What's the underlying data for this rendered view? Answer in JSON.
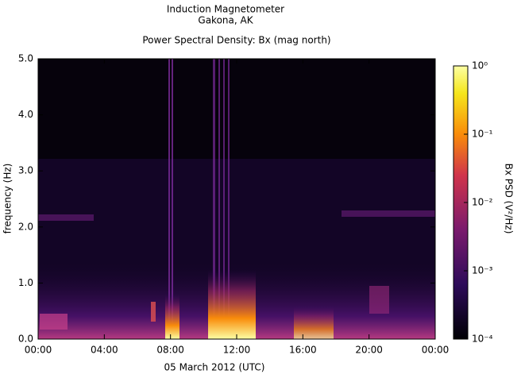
{
  "chart_data": {
    "type": "spectrogram",
    "title": "Induction Magnetometer",
    "subtitle": "Gakona, AK",
    "plot_title": "Power Spectral Density: Bx (mag north)",
    "x_label": "05 March 2012 (UTC)",
    "y_label": "frequency (Hz)",
    "xlim": [
      0,
      24
    ],
    "xticks": [
      {
        "value": 0,
        "label": "00:00"
      },
      {
        "value": 4,
        "label": "04:00"
      },
      {
        "value": 8,
        "label": "08:00"
      },
      {
        "value": 12,
        "label": "12:00"
      },
      {
        "value": 16,
        "label": "16:00"
      },
      {
        "value": 20,
        "label": "20:00"
      },
      {
        "value": 24,
        "label": "00:00"
      }
    ],
    "ylim": [
      0,
      5
    ],
    "yticks": [
      {
        "value": 0,
        "label": "0.0"
      },
      {
        "value": 1,
        "label": "1.0"
      },
      {
        "value": 2,
        "label": "2.0"
      },
      {
        "value": 3,
        "label": "3.0"
      },
      {
        "value": 4,
        "label": "4.0"
      },
      {
        "value": 5,
        "label": "5.0"
      }
    ],
    "colorbar": {
      "label": "Bx PSD (V²/Hz)",
      "log_scale": true,
      "lim": [
        0.0001,
        1
      ],
      "ticks": [
        {
          "value": 0.0001,
          "label": "10⁻⁴"
        },
        {
          "value": 0.001,
          "label": "10⁻³"
        },
        {
          "value": 0.01,
          "label": "10⁻²"
        },
        {
          "value": 0.1,
          "label": "10⁻¹"
        },
        {
          "value": 1,
          "label": "10⁰"
        }
      ]
    }
  }
}
